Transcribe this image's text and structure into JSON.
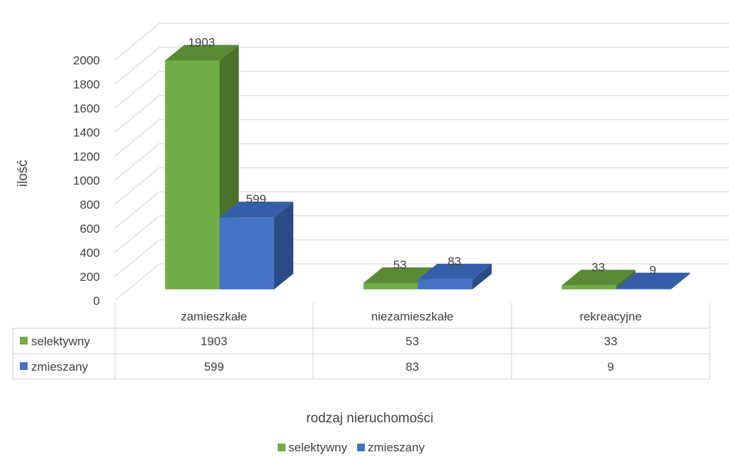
{
  "chart_data": {
    "type": "bar",
    "style": "3d-clustered-column-with-data-table",
    "categories": [
      "zamieszkałe",
      "niezamieszkałe",
      "rekreacyjne"
    ],
    "series": [
      {
        "name": "selektywny",
        "values": [
          1903,
          53,
          33
        ],
        "color": "#70ad47",
        "side_color": "#4a7229",
        "top_color": "#5a8a35"
      },
      {
        "name": "zmieszany",
        "values": [
          599,
          83,
          9
        ],
        "color": "#4472c4",
        "side_color": "#2c4c86",
        "top_color": "#365ea8"
      }
    ],
    "title": "",
    "xlabel": "rodzaj nieruchomości",
    "ylabel": "ilość",
    "ylim": [
      0,
      2000
    ],
    "yticks": [
      0,
      200,
      400,
      600,
      800,
      1000,
      1200,
      1400,
      1600,
      1800,
      2000
    ],
    "grid": true,
    "legend": "bottom",
    "data_table": true
  }
}
